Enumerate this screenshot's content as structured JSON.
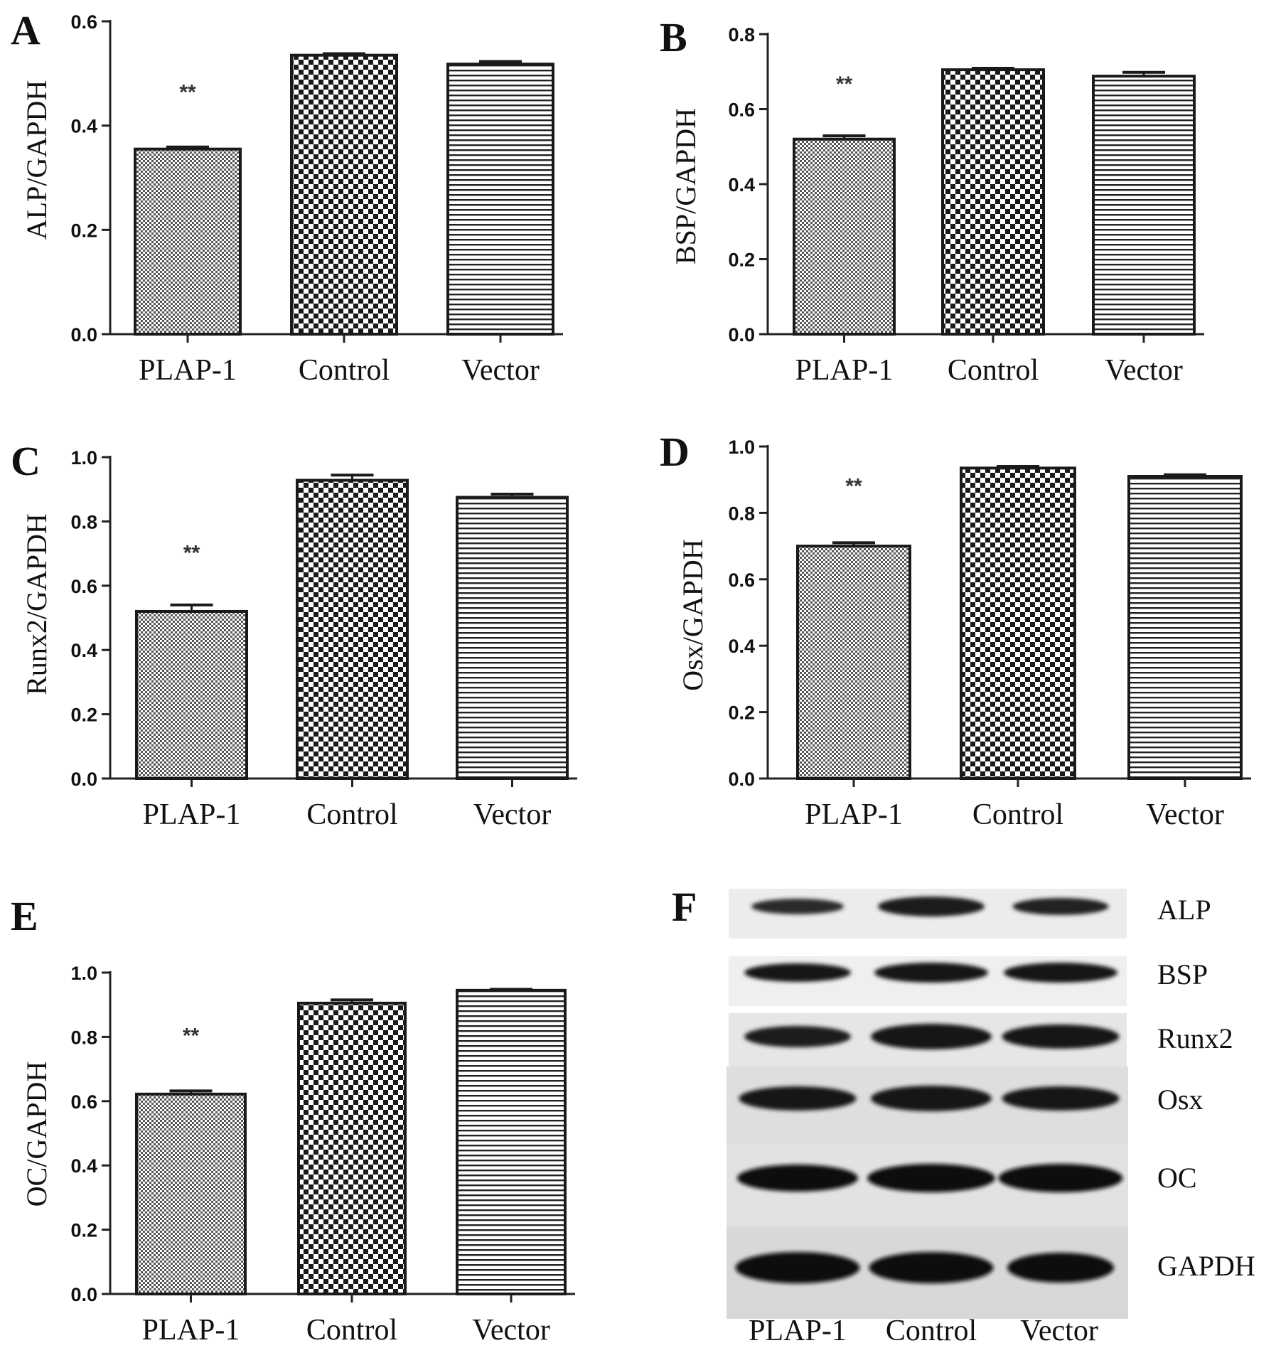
{
  "chart_data": [
    {
      "panel": "A",
      "type": "bar",
      "ylabel": "ALP/GAPDH",
      "ylim": [
        0,
        0.6
      ],
      "yticks": [
        0.0,
        0.2,
        0.4,
        0.6
      ],
      "ytick_labels": [
        "0.0",
        "0.2",
        "0.4",
        "0.6"
      ],
      "categories": [
        "PLAP-1",
        "Control",
        "Vector"
      ],
      "values": [
        0.355,
        0.535,
        0.518
      ],
      "errors": [
        0.004,
        0.003,
        0.005
      ],
      "significance": [
        "**",
        "",
        ""
      ],
      "patterns": [
        "fine-dots",
        "checker",
        "hlines"
      ]
    },
    {
      "panel": "B",
      "type": "bar",
      "ylabel": "BSP/GAPDH",
      "ylim": [
        0,
        0.8
      ],
      "yticks": [
        0.0,
        0.2,
        0.4,
        0.6,
        0.8
      ],
      "ytick_labels": [
        "0.0",
        "0.2",
        "0.4",
        "0.6",
        "0.8"
      ],
      "categories": [
        "PLAP-1",
        "Control",
        "Vector"
      ],
      "values": [
        0.52,
        0.705,
        0.688
      ],
      "errors": [
        0.009,
        0.004,
        0.01
      ],
      "significance": [
        "**",
        "",
        ""
      ],
      "patterns": [
        "fine-dots",
        "checker",
        "hlines"
      ]
    },
    {
      "panel": "C",
      "type": "bar",
      "ylabel": "Runx2/GAPDH",
      "ylim": [
        0,
        1.0
      ],
      "yticks": [
        0.0,
        0.2,
        0.4,
        0.6,
        0.8,
        1.0
      ],
      "ytick_labels": [
        "0.0",
        "0.2",
        "0.4",
        "0.6",
        "0.8",
        "1.0"
      ],
      "categories": [
        "PLAP-1",
        "Control",
        "Vector"
      ],
      "values": [
        0.52,
        0.928,
        0.875
      ],
      "errors": [
        0.02,
        0.016,
        0.01
      ],
      "significance": [
        "**",
        "",
        ""
      ],
      "patterns": [
        "fine-dots",
        "checker",
        "hlines"
      ]
    },
    {
      "panel": "D",
      "type": "bar",
      "ylabel": "Osx/GAPDH",
      "ylim": [
        0,
        1.0
      ],
      "yticks": [
        0.0,
        0.2,
        0.4,
        0.6,
        0.8,
        1.0
      ],
      "ytick_labels": [
        "0.0",
        "0.2",
        "0.4",
        "0.6",
        "0.8",
        "1.0"
      ],
      "categories": [
        "PLAP-1",
        "Control",
        "Vector"
      ],
      "values": [
        0.7,
        0.935,
        0.91
      ],
      "errors": [
        0.01,
        0.005,
        0.005
      ],
      "significance": [
        "**",
        "",
        ""
      ],
      "patterns": [
        "fine-dots",
        "checker",
        "hlines"
      ]
    },
    {
      "panel": "E",
      "type": "bar",
      "ylabel": "OC/GAPDH",
      "ylim": [
        0,
        1.0
      ],
      "yticks": [
        0.0,
        0.2,
        0.4,
        0.6,
        0.8,
        1.0
      ],
      "ytick_labels": [
        "0.0",
        "0.2",
        "0.4",
        "0.6",
        "0.8",
        "1.0"
      ],
      "categories": [
        "PLAP-1",
        "Control",
        "Vector"
      ],
      "values": [
        0.622,
        0.905,
        0.945
      ],
      "errors": [
        0.01,
        0.01,
        0.003
      ],
      "significance": [
        "**",
        "",
        ""
      ],
      "patterns": [
        "fine-dots",
        "checker",
        "hlines"
      ]
    }
  ],
  "blot": {
    "panel": "F",
    "proteins": [
      "ALP",
      "BSP",
      "Runx2",
      "Osx",
      "OC",
      "GAPDH"
    ],
    "lanes": [
      "PLAP-1",
      "Control",
      "Vector"
    ]
  }
}
